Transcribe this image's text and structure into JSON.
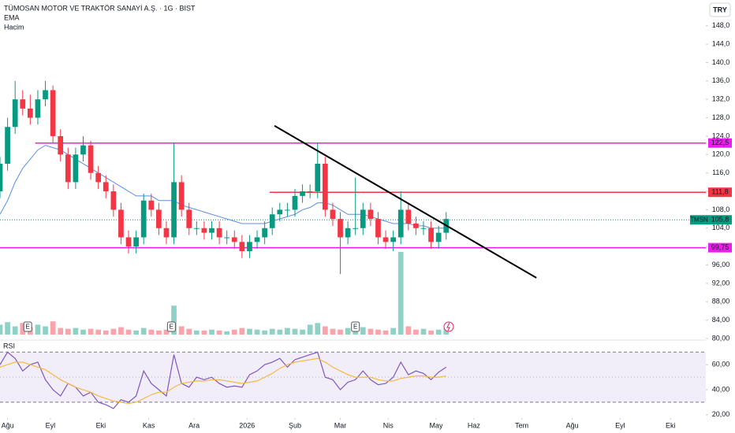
{
  "chart_data": {
    "type": "candlestick",
    "title": "TÜMOSAN MOTOR VE TRAKTÖR SANAYİ A.Ş. · 1G · BIST",
    "indicator_labels": [
      "EMA",
      "Hacim"
    ],
    "currency": "TRY",
    "xlim": [
      0,
      280
    ],
    "xticks": [
      {
        "value": 3,
        "label": "Ağu"
      },
      {
        "value": 20,
        "label": "Eyl"
      },
      {
        "value": 40,
        "label": "Eki"
      },
      {
        "value": 59,
        "label": "Kas"
      },
      {
        "value": 77,
        "label": "Ara"
      },
      {
        "value": 98,
        "label": "2026"
      },
      {
        "value": 117,
        "label": "Şub"
      },
      {
        "value": 135,
        "label": "Mar"
      },
      {
        "value": 154,
        "label": "Nis"
      },
      {
        "value": 173,
        "label": "May"
      },
      {
        "value": 188,
        "label": "Haz"
      },
      {
        "value": 207,
        "label": "Tem"
      },
      {
        "value": 227,
        "label": "Ağu"
      },
      {
        "value": 246,
        "label": "Eyl"
      },
      {
        "value": 266,
        "label": "Eki"
      }
    ],
    "ylim": [
      80,
      153.6
    ],
    "yticks": [
      {
        "value": 148,
        "label": "148,0"
      },
      {
        "value": 144,
        "label": "144,0"
      },
      {
        "value": 140,
        "label": "140,0"
      },
      {
        "value": 136,
        "label": "136,0"
      },
      {
        "value": 132,
        "label": "132,0"
      },
      {
        "value": 128,
        "label": "128,0"
      },
      {
        "value": 124,
        "label": "124,0"
      },
      {
        "value": 120,
        "label": "120,0"
      },
      {
        "value": 116,
        "label": "116,0"
      },
      {
        "value": 112,
        "label": "112,0"
      },
      {
        "value": 108,
        "label": "108,0"
      },
      {
        "value": 104,
        "label": "104,0"
      },
      {
        "value": 100,
        "label": "100,0"
      },
      {
        "value": 96,
        "label": "96,00"
      },
      {
        "value": 92,
        "label": "92,00"
      },
      {
        "value": 88,
        "label": "88,00"
      },
      {
        "value": 84,
        "label": "84,00"
      },
      {
        "value": 80,
        "label": "80,00"
      }
    ],
    "up_color": "#089981",
    "down_color": "#f23645",
    "x": [
      0,
      3,
      6,
      9,
      12,
      15,
      18,
      21,
      24,
      27,
      30,
      33,
      36,
      39,
      42,
      45,
      48,
      51,
      54,
      57,
      60,
      63,
      66,
      69,
      72,
      75,
      78,
      81,
      84,
      87,
      90,
      93,
      96,
      99,
      102,
      105,
      108,
      111,
      114,
      117,
      120,
      123,
      126,
      129,
      132,
      135,
      138,
      141,
      144,
      147,
      150,
      153,
      156,
      159,
      162,
      165,
      168,
      171,
      174,
      177
    ],
    "open": [
      112,
      118,
      126,
      132,
      130,
      128,
      132,
      134,
      124,
      120,
      114,
      120,
      122,
      116,
      114,
      112,
      108,
      102,
      100,
      102,
      110,
      108,
      104,
      102,
      114,
      108,
      104,
      104,
      103,
      104,
      102,
      102,
      101,
      99,
      101,
      102,
      104,
      107,
      108,
      108,
      111,
      112,
      112,
      118,
      108,
      106,
      102,
      104,
      104,
      108,
      106,
      102,
      101,
      102,
      108,
      105,
      104,
      104,
      101,
      103
    ],
    "high": [
      119.5,
      128,
      136,
      134,
      133,
      134,
      136,
      135,
      125.5,
      121.5,
      121.5,
      124,
      123,
      117.5,
      115.5,
      113.5,
      109.5,
      103.5,
      103.5,
      111.5,
      111.5,
      109.5,
      105.5,
      122.5,
      115.5,
      109.5,
      105.5,
      105.5,
      105.5,
      105.5,
      103.5,
      103.5,
      102.5,
      102.5,
      103.5,
      105.5,
      108.5,
      109.5,
      109.5,
      112.5,
      113.5,
      113.5,
      122.5,
      119.5,
      109.5,
      107.5,
      105.5,
      115,
      109.5,
      109.5,
      107.5,
      103.5,
      103.5,
      112,
      109.5,
      106.5,
      105.5,
      105.5,
      104.5,
      107.5
    ],
    "low": [
      110.5,
      116.5,
      124.5,
      128.5,
      126.5,
      126.5,
      130.5,
      122.5,
      118.5,
      112.5,
      112.5,
      118.5,
      114.5,
      112.5,
      110.5,
      106.5,
      100.5,
      98.5,
      98.5,
      100.5,
      106.5,
      102.5,
      100.5,
      100.5,
      106.5,
      102.5,
      102.5,
      101.5,
      101.5,
      100.5,
      100.5,
      99.5,
      97.5,
      97.5,
      99.5,
      100.5,
      102.5,
      105.5,
      106.5,
      106.5,
      109.5,
      110.5,
      110.5,
      106.5,
      104.5,
      94,
      100.5,
      102.5,
      102.5,
      104.5,
      100.5,
      99.5,
      99,
      100.5,
      103.5,
      102.5,
      102.5,
      99.5,
      99.5,
      101.5
    ],
    "close": [
      118,
      126,
      132,
      130,
      128,
      132,
      134,
      124,
      120,
      114,
      120,
      122,
      116,
      114,
      112,
      108,
      102,
      100,
      102,
      110,
      108,
      104,
      102,
      114,
      108,
      104,
      104,
      103,
      104,
      102,
      102,
      101,
      99,
      101,
      102,
      104,
      107,
      108,
      108,
      111,
      112,
      112,
      118,
      108,
      106,
      102,
      104,
      104,
      108,
      106,
      102,
      101,
      102,
      108,
      105,
      104,
      104,
      101,
      103,
      106
    ],
    "ema": {
      "name": "EMA",
      "color": "#5b8ee6",
      "values": [
        107,
        110,
        114,
        117,
        119,
        121,
        122,
        121.5,
        121,
        120,
        119,
        118,
        117,
        116,
        115,
        114,
        113,
        112,
        111,
        111,
        111,
        110,
        110,
        110,
        109,
        108.5,
        108,
        107.5,
        107,
        106.5,
        106,
        105.5,
        105,
        105,
        105,
        105,
        105.5,
        106,
        106.5,
        107,
        108,
        108.5,
        109.5,
        109.5,
        109,
        108,
        107,
        107,
        107,
        106.5,
        106,
        105.5,
        105,
        105,
        105,
        104.5,
        104.5,
        104,
        104,
        104
      ]
    },
    "volume": {
      "name": "Hacim",
      "ylim": [
        0,
        100
      ],
      "values": [
        12,
        15,
        10,
        14,
        9,
        12,
        10,
        16,
        8,
        7,
        8,
        6,
        7,
        6,
        5,
        7,
        9,
        6,
        5,
        8,
        6,
        5,
        6,
        35,
        10,
        7,
        5,
        5,
        6,
        5,
        4,
        6,
        8,
        7,
        6,
        5,
        7,
        6,
        8,
        7,
        6,
        12,
        14,
        10,
        7,
        6,
        8,
        6,
        9,
        7,
        6,
        5,
        8,
        100,
        10,
        6,
        7,
        5,
        6,
        8
      ]
    },
    "earnings": {
      "label": "E",
      "x": [
        11,
        68,
        141
      ]
    },
    "hlines": [
      {
        "value": 122.5,
        "label": "122,5",
        "color": "#e91ee9",
        "start": 14
      },
      {
        "value": 111.8,
        "label": "111,8",
        "color": "#f23645",
        "start": 107
      },
      {
        "value": 99.75,
        "label": "99,75",
        "color": "#e91ee9",
        "start": 0
      }
    ],
    "trendline": {
      "x": [
        108.9,
        212.8
      ],
      "y": [
        126.25,
        93.2
      ],
      "color": "#000000"
    },
    "last_price": {
      "symbol": "TMSN",
      "value": 105.8,
      "label": "105,8",
      "color": "#089981"
    },
    "rsi": {
      "title": "RSI",
      "ylim": [
        18,
        79
      ],
      "yticks": [
        {
          "value": 60,
          "label": "60,00"
        },
        {
          "value": 40,
          "label": "40,00"
        },
        {
          "value": 20,
          "label": "20,00"
        }
      ],
      "bands": [
        30,
        70
      ],
      "middle": 50,
      "series": [
        {
          "name": "RSI",
          "color": "#7e57c2",
          "values": [
            60,
            70,
            65,
            55,
            60,
            62,
            48,
            40,
            35,
            45,
            42,
            35,
            38,
            30,
            28,
            25,
            32,
            30,
            35,
            55,
            45,
            40,
            35,
            68,
            45,
            42,
            50,
            48,
            50,
            45,
            42,
            43,
            42,
            52,
            55,
            60,
            62,
            65,
            58,
            64,
            66,
            68,
            70,
            50,
            48,
            40,
            46,
            48,
            55,
            48,
            44,
            45,
            50,
            62,
            52,
            55,
            53,
            48,
            54,
            58
          ]
        },
        {
          "name": "MA",
          "color": "#f5b942",
          "values": [
            58,
            60,
            62,
            62,
            60,
            58,
            56,
            52,
            48,
            45,
            42,
            40,
            38,
            35,
            33,
            31,
            30,
            29,
            30,
            33,
            36,
            38,
            38,
            42,
            45,
            46,
            47,
            47,
            48,
            48,
            47,
            46,
            45,
            46,
            47,
            50,
            53,
            57,
            60,
            62,
            63,
            64,
            65,
            62,
            58,
            55,
            52,
            50,
            50,
            50,
            48,
            47,
            47,
            49,
            50,
            51,
            51,
            50,
            50,
            51
          ]
        }
      ]
    }
  }
}
